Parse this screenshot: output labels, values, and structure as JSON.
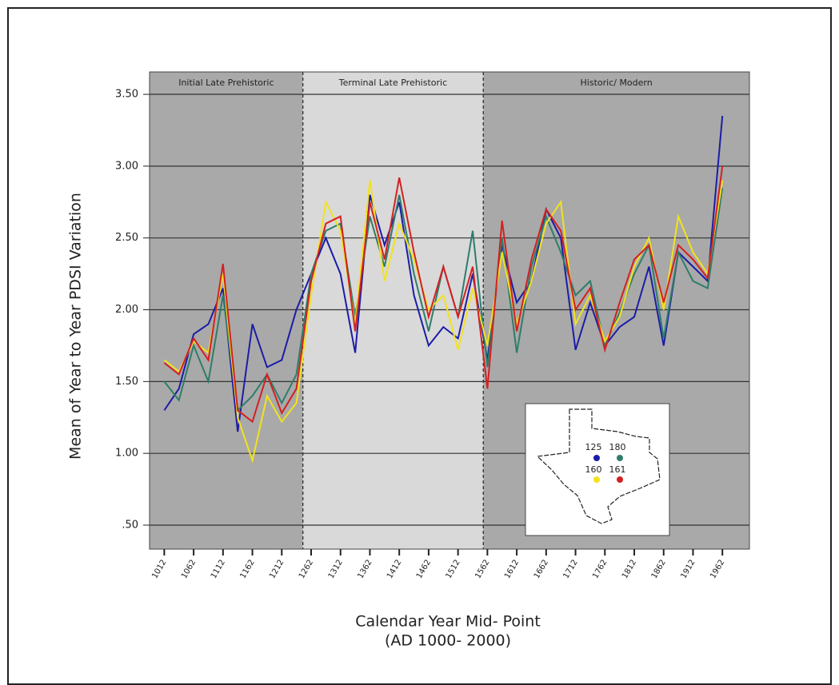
{
  "chart_data": {
    "type": "line",
    "ylabel": "Mean of Year to Year PDSI Variation",
    "xlabel": "Calendar Year Mid- Point",
    "xlabel_sub": "(AD 1000- 2000)",
    "regions": [
      {
        "label": "Initial Late Prehistoric",
        "start": 987,
        "end": 1248,
        "color": "#a9a9a9"
      },
      {
        "label": "Terminal Late Prehistoric",
        "start": 1248,
        "end": 1555,
        "color": "#d9d9d9"
      },
      {
        "label": "Historic/ Modern",
        "start": 1555,
        "end": 2008,
        "color": "#a9a9a9"
      }
    ],
    "x": [
      1012,
      1037,
      1062,
      1087,
      1112,
      1137,
      1162,
      1187,
      1212,
      1237,
      1262,
      1287,
      1312,
      1337,
      1362,
      1387,
      1412,
      1437,
      1462,
      1487,
      1512,
      1537,
      1562,
      1587,
      1612,
      1637,
      1662,
      1687,
      1712,
      1737,
      1762,
      1787,
      1812,
      1837,
      1862,
      1887,
      1912,
      1937,
      1962
    ],
    "series": [
      {
        "name": "125",
        "color": "#1c1ca8",
        "values": [
          1.3,
          1.45,
          1.83,
          1.9,
          2.15,
          1.15,
          1.9,
          1.6,
          1.65,
          2.0,
          2.25,
          2.5,
          2.25,
          1.7,
          2.8,
          2.45,
          2.75,
          2.1,
          1.75,
          1.88,
          1.8,
          2.25,
          1.65,
          2.45,
          2.05,
          2.2,
          2.7,
          2.5,
          1.72,
          2.05,
          1.75,
          1.88,
          1.95,
          2.3,
          1.75,
          2.4,
          2.3,
          2.2,
          3.35
        ]
      },
      {
        "name": "180",
        "color": "#2e7d6a",
        "values": [
          1.5,
          1.37,
          1.75,
          1.5,
          2.1,
          1.3,
          1.4,
          1.55,
          1.35,
          1.55,
          2.25,
          2.55,
          2.6,
          1.95,
          2.65,
          2.3,
          2.8,
          2.25,
          1.85,
          2.3,
          1.95,
          2.55,
          1.6,
          2.5,
          1.7,
          2.3,
          2.65,
          2.4,
          2.1,
          2.2,
          1.75,
          1.98,
          2.25,
          2.45,
          1.8,
          2.4,
          2.2,
          2.15,
          2.85
        ]
      },
      {
        "name": "160",
        "color": "#f2e21e",
        "values": [
          1.65,
          1.57,
          1.78,
          1.7,
          2.25,
          1.25,
          0.95,
          1.4,
          1.22,
          1.35,
          2.1,
          2.75,
          2.55,
          1.9,
          2.9,
          2.2,
          2.6,
          2.35,
          2.0,
          2.1,
          1.72,
          2.15,
          1.75,
          2.4,
          1.9,
          2.2,
          2.6,
          2.75,
          1.9,
          2.1,
          1.78,
          1.95,
          2.3,
          2.5,
          2.0,
          2.65,
          2.4,
          2.25,
          2.9
        ]
      },
      {
        "name": "161",
        "color": "#d42020",
        "values": [
          1.63,
          1.55,
          1.8,
          1.65,
          2.32,
          1.3,
          1.22,
          1.55,
          1.28,
          1.45,
          2.2,
          2.6,
          2.65,
          1.85,
          2.75,
          2.35,
          2.92,
          2.4,
          1.95,
          2.3,
          1.95,
          2.3,
          1.45,
          2.62,
          1.85,
          2.35,
          2.7,
          2.55,
          2.0,
          2.15,
          1.72,
          2.05,
          2.35,
          2.45,
          2.05,
          2.45,
          2.35,
          2.22,
          3.0
        ]
      }
    ],
    "xlim": [
      987,
      2008
    ],
    "ylim": [
      0.333,
      3.656
    ],
    "xticks": [
      1012,
      1062,
      1112,
      1162,
      1212,
      1262,
      1312,
      1362,
      1412,
      1462,
      1512,
      1562,
      1612,
      1662,
      1712,
      1762,
      1812,
      1862,
      1912,
      1962
    ],
    "yticks": [
      {
        "value": 0.5,
        "label": ".50"
      },
      {
        "value": 1.0,
        "label": "1.00"
      },
      {
        "value": 1.5,
        "label": "1.50"
      },
      {
        "value": 2.0,
        "label": "2.00"
      },
      {
        "value": 2.5,
        "label": "2.50"
      },
      {
        "value": 3.0,
        "label": "3.00"
      },
      {
        "value": 3.5,
        "label": "3.50"
      }
    ],
    "grid": true
  }
}
